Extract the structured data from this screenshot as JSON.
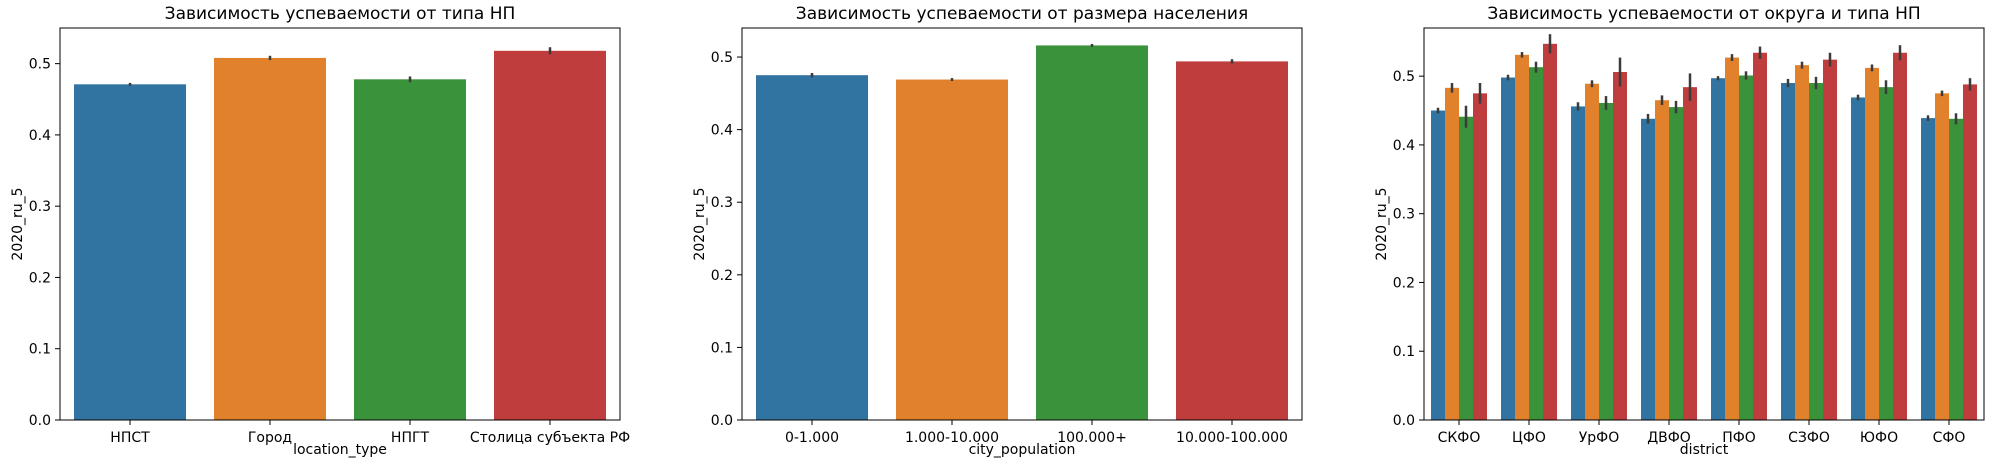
{
  "chart_data": [
    {
      "type": "bar",
      "title": "Зависимость успеваемости от типа НП",
      "xlabel": "location_type",
      "ylabel": "2020_ru_5",
      "ylim": [
        0,
        0.55
      ],
      "yticks": [
        0.0,
        0.1,
        0.2,
        0.3,
        0.4,
        0.5
      ],
      "ytick_labels": [
        "0.0",
        "0.1",
        "0.2",
        "0.3",
        "0.4",
        "0.5"
      ],
      "categories": [
        "НПСТ",
        "Город",
        "НПГТ",
        "Столица субъекта РФ"
      ],
      "values": [
        0.471,
        0.508,
        0.478,
        0.518
      ],
      "ci": [
        [
          0.469,
          0.473
        ],
        [
          0.505,
          0.511
        ],
        [
          0.474,
          0.482
        ],
        [
          0.513,
          0.523
        ]
      ],
      "colors": [
        "#3274a1",
        "#e1812c",
        "#3a923a",
        "#c03d3e"
      ],
      "grid": false
    },
    {
      "type": "bar",
      "title": "Зависимость успеваемости от размера населения",
      "xlabel": "city_population",
      "ylabel": "2020_ru_5",
      "ylim": [
        0,
        0.54
      ],
      "yticks": [
        0.0,
        0.1,
        0.2,
        0.3,
        0.4,
        0.5
      ],
      "ytick_labels": [
        "0.0",
        "0.1",
        "0.2",
        "0.3",
        "0.4",
        "0.5"
      ],
      "categories": [
        "0-1.000",
        "1.000-10.000",
        "100.000+",
        "10.000-100.000"
      ],
      "values": [
        0.475,
        0.469,
        0.516,
        0.494
      ],
      "ci": [
        [
          0.472,
          0.478
        ],
        [
          0.467,
          0.471
        ],
        [
          0.514,
          0.518
        ],
        [
          0.491,
          0.497
        ]
      ],
      "colors": [
        "#3274a1",
        "#e1812c",
        "#3a923a",
        "#c03d3e"
      ],
      "grid": false
    },
    {
      "type": "bar",
      "title": "Зависимость успеваемости от округа и типа НП",
      "xlabel": "district",
      "ylabel": "2020_ru_5",
      "ylim": [
        0,
        0.57
      ],
      "yticks": [
        0.0,
        0.1,
        0.2,
        0.3,
        0.4,
        0.5
      ],
      "ytick_labels": [
        "0.0",
        "0.1",
        "0.2",
        "0.3",
        "0.4",
        "0.5"
      ],
      "categories": [
        "СКФО",
        "ЦФО",
        "УрФО",
        "ДВФО",
        "ПФО",
        "СЗФО",
        "ЮФО",
        "СФО"
      ],
      "series": [
        {
          "color": "#3274a1",
          "values": [
            0.45,
            0.498,
            0.456,
            0.438,
            0.497,
            0.49,
            0.469,
            0.439
          ],
          "ci": [
            [
              0.446,
              0.454
            ],
            [
              0.494,
              0.502
            ],
            [
              0.45,
              0.462
            ],
            [
              0.431,
              0.445
            ],
            [
              0.494,
              0.5
            ],
            [
              0.484,
              0.496
            ],
            [
              0.465,
              0.473
            ],
            [
              0.435,
              0.443
            ]
          ]
        },
        {
          "color": "#e1812c",
          "values": [
            0.483,
            0.531,
            0.489,
            0.465,
            0.527,
            0.516,
            0.512,
            0.475
          ],
          "ci": [
            [
              0.476,
              0.49
            ],
            [
              0.527,
              0.535
            ],
            [
              0.484,
              0.494
            ],
            [
              0.458,
              0.472
            ],
            [
              0.522,
              0.532
            ],
            [
              0.511,
              0.521
            ],
            [
              0.507,
              0.517
            ],
            [
              0.471,
              0.479
            ]
          ]
        },
        {
          "color": "#3a923a",
          "values": [
            0.441,
            0.513,
            0.461,
            0.455,
            0.501,
            0.49,
            0.484,
            0.438
          ],
          "ci": [
            [
              0.425,
              0.457
            ],
            [
              0.505,
              0.521
            ],
            [
              0.451,
              0.471
            ],
            [
              0.446,
              0.464
            ],
            [
              0.495,
              0.507
            ],
            [
              0.481,
              0.499
            ],
            [
              0.474,
              0.494
            ],
            [
              0.43,
              0.446
            ]
          ]
        },
        {
          "color": "#c03d3e",
          "values": [
            0.475,
            0.547,
            0.506,
            0.484,
            0.534,
            0.524,
            0.534,
            0.488
          ],
          "ci": [
            [
              0.46,
              0.49
            ],
            [
              0.533,
              0.561
            ],
            [
              0.485,
              0.527
            ],
            [
              0.464,
              0.504
            ],
            [
              0.525,
              0.543
            ],
            [
              0.514,
              0.534
            ],
            [
              0.523,
              0.545
            ],
            [
              0.479,
              0.497
            ]
          ]
        }
      ],
      "grid": false
    }
  ]
}
